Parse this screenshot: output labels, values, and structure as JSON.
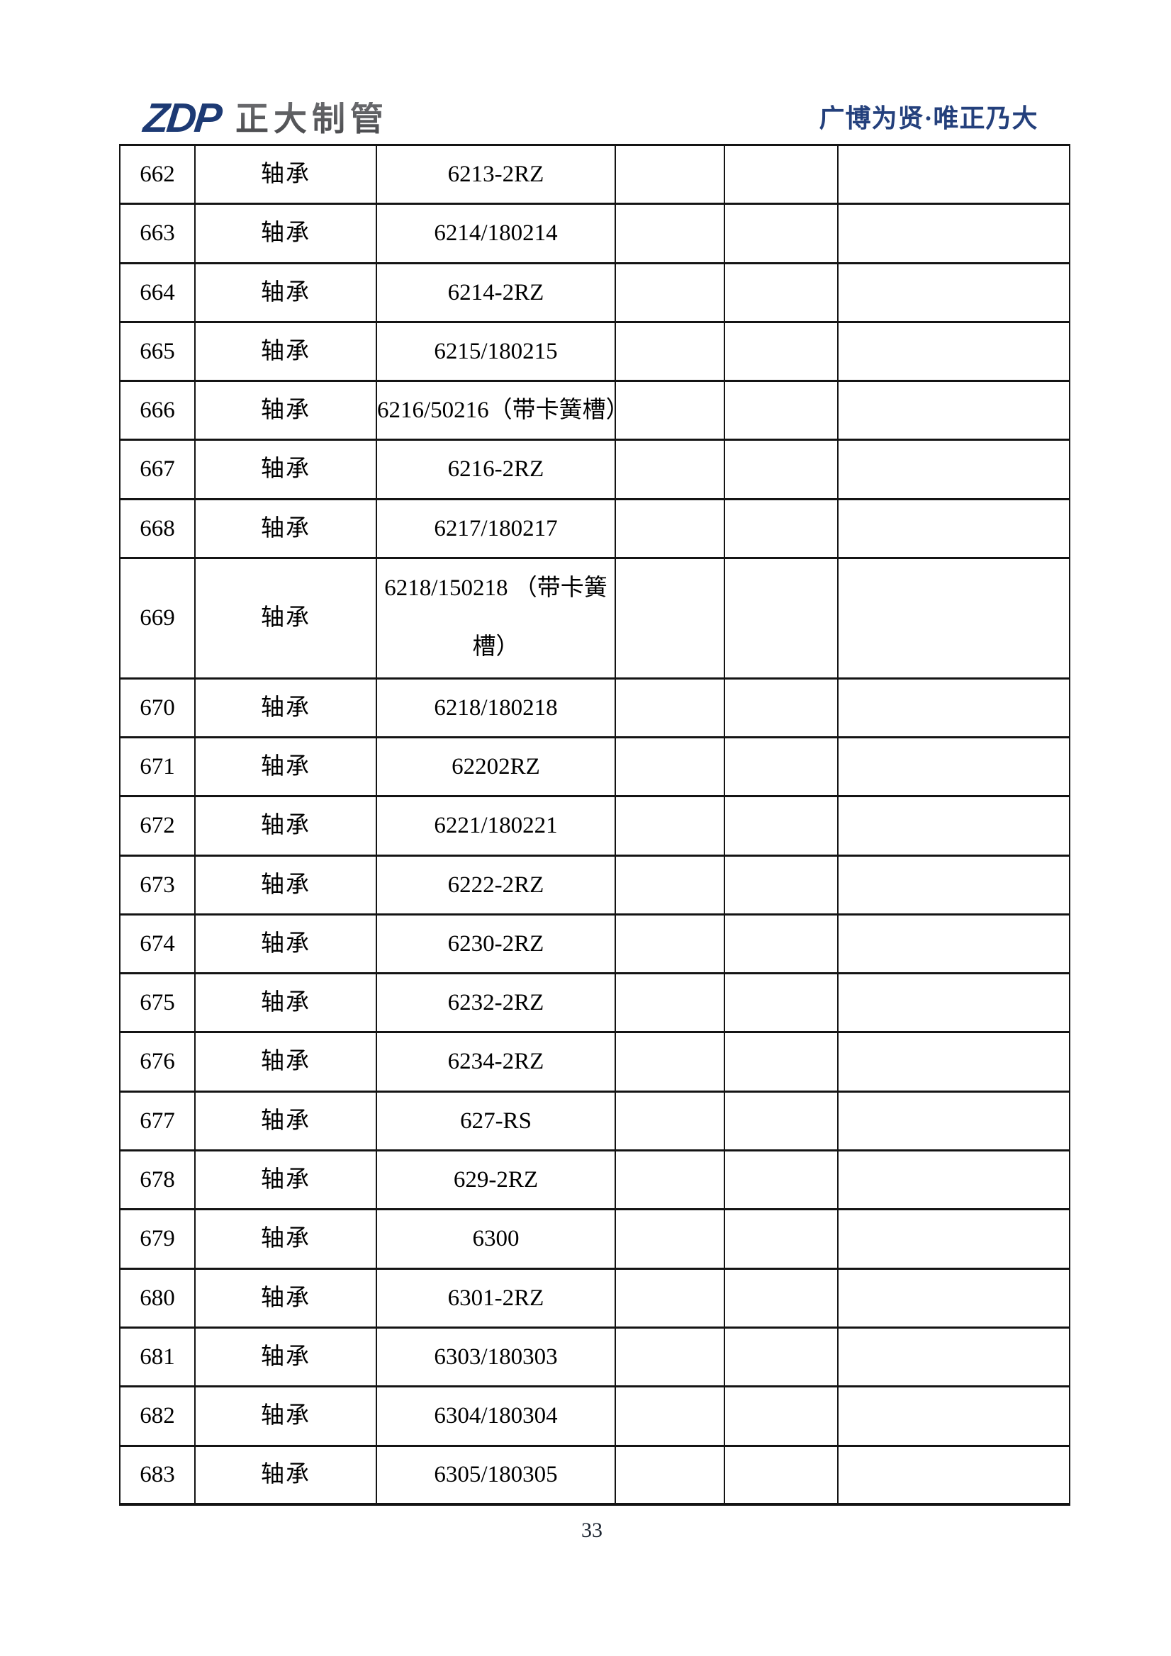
{
  "header": {
    "logo_text": "ZDP",
    "company_name": "正大制管",
    "slogan": "广博为贤·唯正乃大"
  },
  "table": {
    "rows": [
      {
        "no": "662",
        "name": "轴承",
        "spec": "6213-2RZ"
      },
      {
        "no": "663",
        "name": "轴承",
        "spec": "6214/180214"
      },
      {
        "no": "664",
        "name": "轴承",
        "spec": "6214-2RZ"
      },
      {
        "no": "665",
        "name": "轴承",
        "spec": "6215/180215"
      },
      {
        "no": "666",
        "name": "轴承",
        "spec": "6216/50216（带卡簧槽）"
      },
      {
        "no": "667",
        "name": "轴承",
        "spec": "6216-2RZ"
      },
      {
        "no": "668",
        "name": "轴承",
        "spec": "6217/180217"
      },
      {
        "no": "669",
        "name": "轴承",
        "spec": "6218/150218 （带卡簧槽）",
        "spec_lines": [
          "6218/150218 （带卡簧",
          "槽）"
        ],
        "tall": true
      },
      {
        "no": "670",
        "name": "轴承",
        "spec": "6218/180218"
      },
      {
        "no": "671",
        "name": "轴承",
        "spec": "62202RZ"
      },
      {
        "no": "672",
        "name": "轴承",
        "spec": "6221/180221"
      },
      {
        "no": "673",
        "name": "轴承",
        "spec": "6222-2RZ"
      },
      {
        "no": "674",
        "name": "轴承",
        "spec": "6230-2RZ"
      },
      {
        "no": "675",
        "name": "轴承",
        "spec": "6232-2RZ"
      },
      {
        "no": "676",
        "name": "轴承",
        "spec": "6234-2RZ"
      },
      {
        "no": "677",
        "name": "轴承",
        "spec": "627-RS"
      },
      {
        "no": "678",
        "name": "轴承",
        "spec": "629-2RZ"
      },
      {
        "no": "679",
        "name": "轴承",
        "spec": "6300"
      },
      {
        "no": "680",
        "name": "轴承",
        "spec": "6301-2RZ"
      },
      {
        "no": "681",
        "name": "轴承",
        "spec": "6303/180303"
      },
      {
        "no": "682",
        "name": "轴承",
        "spec": "6304/180304"
      },
      {
        "no": "683",
        "name": "轴承",
        "spec": "6305/180305"
      }
    ]
  },
  "footer": {
    "page_number": "33"
  },
  "colors": {
    "logo_blue": "#1d3a74",
    "logo_gray": "#58595c",
    "slogan_blue": "#24407c",
    "table_border": "#141414"
  }
}
